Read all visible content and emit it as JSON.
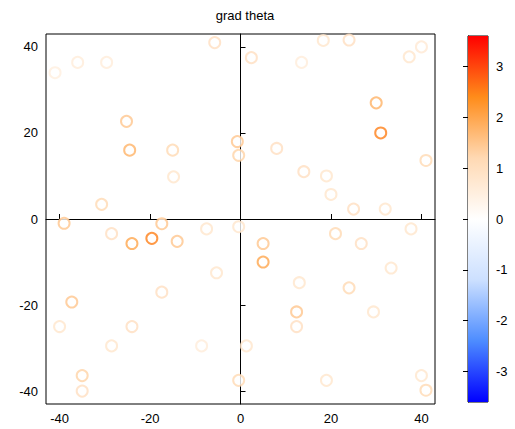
{
  "chart_data": {
    "type": "scatter",
    "title": "grad theta",
    "marker": "ring",
    "xlim": [
      -43,
      43
    ],
    "ylim": [
      -43,
      43
    ],
    "xticks": [
      -40,
      -20,
      0,
      20,
      40
    ],
    "yticks": [
      -40,
      -20,
      0,
      20,
      40
    ],
    "grid": false,
    "colorbar": {
      "range": [
        -3.6,
        3.6
      ],
      "ticks": [
        -3,
        -2,
        -1,
        0,
        1,
        2,
        3
      ],
      "colors": [
        "#0000ff",
        "#4d8cff",
        "#cce0ff",
        "#ffffff",
        "#ffd9b3",
        "#ff8c1a",
        "#ff0000"
      ]
    },
    "cells": [
      [
        -25.2,
        22.7,
        1.5
      ],
      [
        -24.5,
        16,
        1.8
      ],
      [
        -15,
        16,
        1.2
      ],
      [
        -14.8,
        9.8,
        0.8
      ],
      [
        -5.7,
        41,
        1
      ],
      [
        2.4,
        37.5,
        1
      ],
      [
        18.3,
        41.5,
        0.8
      ],
      [
        24,
        41.6,
        1
      ],
      [
        40,
        40,
        0.7
      ],
      [
        30,
        27,
        1.8
      ],
      [
        31,
        20,
        2.5
      ],
      [
        37.3,
        37.7,
        0.8
      ],
      [
        41,
        13.6,
        1.2
      ],
      [
        -0.7,
        18,
        1.5
      ],
      [
        -0.4,
        14.8,
        1.3
      ],
      [
        8,
        16.4,
        1
      ],
      [
        14,
        11,
        1
      ],
      [
        19,
        10,
        0.8
      ],
      [
        20,
        5.7,
        0.8
      ],
      [
        25,
        2.3,
        1
      ],
      [
        21,
        -3.4,
        1.2
      ],
      [
        26.7,
        -5.7,
        1
      ],
      [
        32,
        2.3,
        0.8
      ],
      [
        37.7,
        -2.3,
        0.8
      ],
      [
        33.3,
        -11.4,
        0.8
      ],
      [
        -30.7,
        3.4,
        1.2
      ],
      [
        -28.5,
        -3.4,
        1
      ],
      [
        -39,
        -1,
        1.5
      ],
      [
        -19.6,
        -4.5,
        2.5
      ],
      [
        -24,
        -5.7,
        2
      ],
      [
        -14,
        -5.2,
        1.5
      ],
      [
        -17.4,
        -1.1,
        1.5
      ],
      [
        -7.5,
        -2.3,
        0.8
      ],
      [
        -0.4,
        -1.8,
        0.8
      ],
      [
        5,
        -5.7,
        1.5
      ],
      [
        5,
        -10,
        2
      ],
      [
        -5.3,
        -12.5,
        0.8
      ],
      [
        -17.4,
        -17,
        1
      ],
      [
        13,
        -14.8,
        0.8
      ],
      [
        24,
        -16,
        1.2
      ],
      [
        12.4,
        -21.6,
        1.5
      ],
      [
        29.4,
        -21.6,
        0.8
      ],
      [
        -37.3,
        -19.3,
        1.5
      ],
      [
        -40,
        -25,
        0.8
      ],
      [
        -24,
        -25,
        1
      ],
      [
        -28.5,
        -29.5,
        0.8
      ],
      [
        -8.6,
        -29.5,
        0.6
      ],
      [
        1.3,
        -29.5,
        0.8
      ],
      [
        12.4,
        -25,
        1
      ],
      [
        -35,
        -36.4,
        1.3
      ],
      [
        -35,
        -40,
        1
      ],
      [
        -0.4,
        -37.5,
        1.2
      ],
      [
        19,
        -37.5,
        0.8
      ],
      [
        40,
        -36.4,
        0.8
      ],
      [
        41,
        -39.8,
        1.2
      ],
      [
        -29.6,
        36.4,
        0.6
      ],
      [
        -36,
        36.4,
        0.6
      ],
      [
        -41,
        34,
        0.5
      ],
      [
        13.5,
        36.4,
        0.6
      ]
    ]
  }
}
